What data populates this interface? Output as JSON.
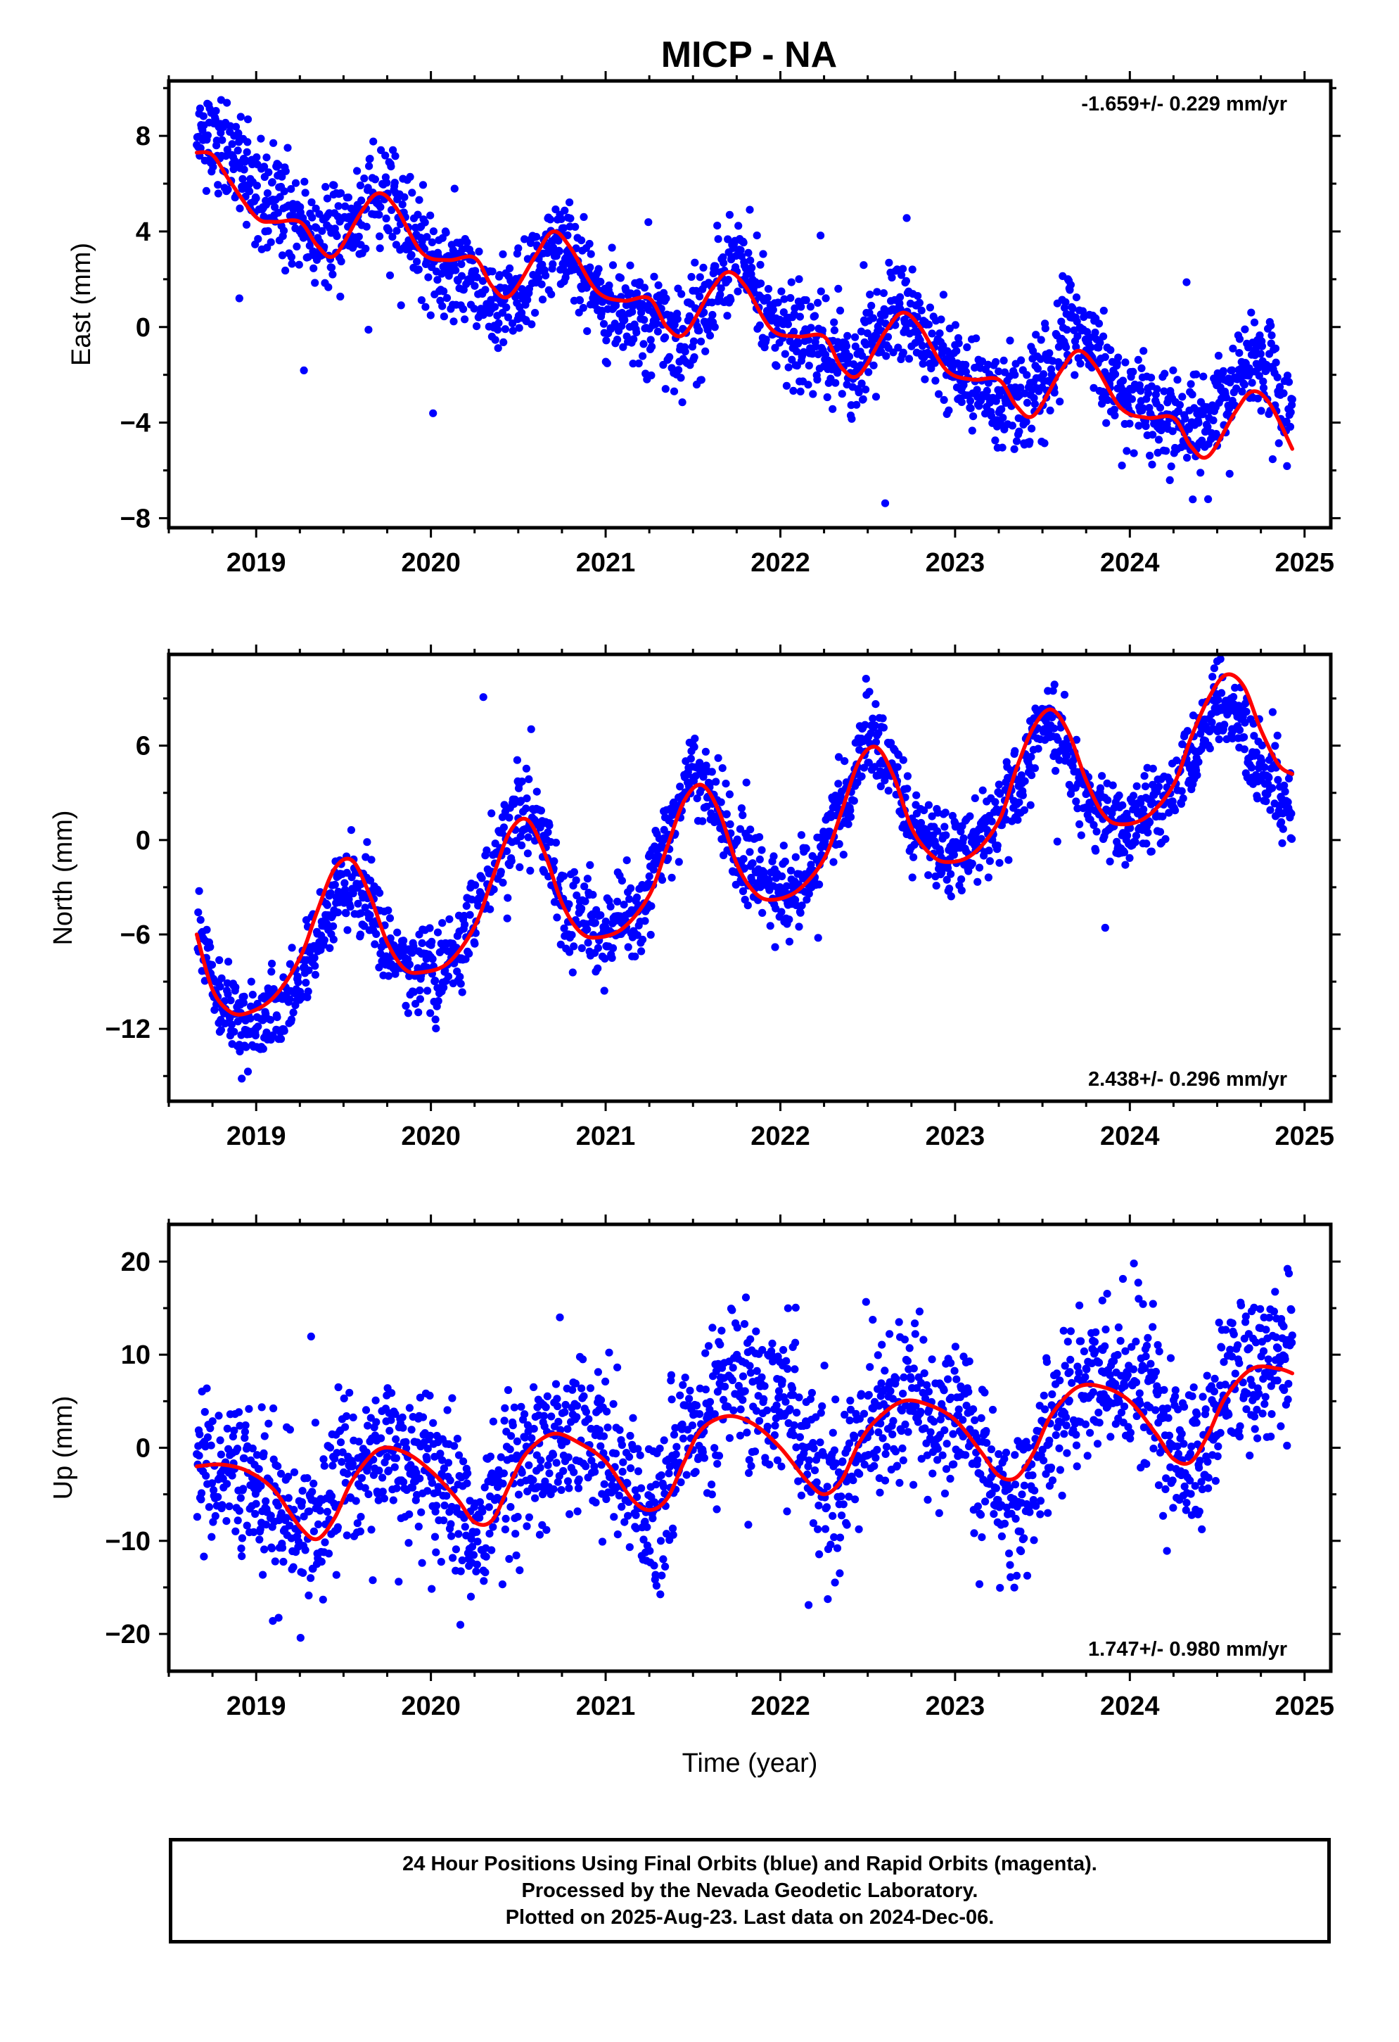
{
  "title": "MICP - NA",
  "footer": {
    "line1": "24 Hour Positions Using Final Orbits (blue) and Rapid Orbits (magenta).",
    "line2": "Processed by the Nevada Geodetic Laboratory.",
    "line3": "Plotted on 2025-Aug-23. Last data on 2024-Dec-06."
  },
  "colors": {
    "points": "#0000ff",
    "fit": "#ff0000",
    "frame": "#000000"
  },
  "chart_data": [
    {
      "type": "scatter",
      "ylabel": "East (mm)",
      "xlabel": "",
      "xlim": [
        2018.5,
        2025.15
      ],
      "ylim": [
        -8.4,
        10.3
      ],
      "xticks": [
        2019,
        2020,
        2021,
        2022,
        2023,
        2024,
        2025
      ],
      "yticks": [
        -8,
        -4,
        0,
        4,
        8
      ],
      "rate_label": "-1.659+/- 0.229 mm/yr",
      "rate_position": "top-right",
      "grid": false,
      "series": [
        {
          "kind": "points",
          "seed": 11,
          "noise_sd": 1.0,
          "outlier_every": 45,
          "outlier_scale": 2.6,
          "x_range": [
            2018.66,
            2024.93
          ],
          "trend": {
            "x": [
              2018.66,
              2018.75,
              2018.9,
              2019.0,
              2019.1,
              2019.25,
              2019.35,
              2019.5,
              2019.65,
              2019.75,
              2019.9,
              2020.0,
              2020.15,
              2020.3,
              2020.4,
              2020.55,
              2020.65,
              2020.75,
              2020.9,
              2021.0,
              2021.15,
              2021.3,
              2021.4,
              2021.55,
              2021.65,
              2021.75,
              2021.9,
              2022.0,
              2022.15,
              2022.3,
              2022.4,
              2022.55,
              2022.65,
              2022.75,
              2022.9,
              2023.0,
              2023.15,
              2023.3,
              2023.4,
              2023.55,
              2023.65,
              2023.75,
              2023.9,
              2024.0,
              2024.15,
              2024.3,
              2024.4,
              2024.55,
              2024.65,
              2024.75,
              2024.93
            ],
            "y": [
              8.5,
              7.8,
              6.5,
              5.6,
              5.2,
              4.8,
              3.6,
              3.9,
              5.4,
              5.3,
              3.6,
              2.5,
              2.5,
              1.6,
              0.8,
              1.8,
              3.3,
              3.5,
              2.0,
              0.8,
              0.5,
              0.3,
              -0.6,
              0.2,
              2.0,
              3.0,
              1.2,
              0.0,
              -0.8,
              -1.0,
              -1.7,
              -0.5,
              0.8,
              0.3,
              -1.2,
              -2.2,
              -2.5,
              -3.0,
              -3.1,
              -1.9,
              0.6,
              -0.6,
              -2.2,
              -3.0,
              -3.6,
              -4.1,
              -4.3,
              -3.0,
              -1.5,
              -1.6,
              -3.2
            ]
          }
        },
        {
          "kind": "fit",
          "x": [
            2018.66,
            2018.75,
            2018.85,
            2019.0,
            2019.1,
            2019.25,
            2019.35,
            2019.45,
            2019.6,
            2019.7,
            2019.8,
            2019.95,
            2020.1,
            2020.25,
            2020.35,
            2020.45,
            2020.6,
            2020.7,
            2020.8,
            2020.95,
            2021.1,
            2021.25,
            2021.35,
            2021.45,
            2021.6,
            2021.7,
            2021.8,
            2021.95,
            2022.1,
            2022.25,
            2022.35,
            2022.45,
            2022.6,
            2022.7,
            2022.8,
            2022.95,
            2023.1,
            2023.25,
            2023.35,
            2023.45,
            2023.6,
            2023.7,
            2023.8,
            2023.95,
            2024.1,
            2024.25,
            2024.35,
            2024.45,
            2024.6,
            2024.7,
            2024.8,
            2024.93
          ],
          "y": [
            7.3,
            7.2,
            6.1,
            4.6,
            4.4,
            4.4,
            3.4,
            3.0,
            4.8,
            5.6,
            5.0,
            3.1,
            2.8,
            2.9,
            1.7,
            1.3,
            3.0,
            4.0,
            3.3,
            1.5,
            1.1,
            1.2,
            0.0,
            -0.3,
            1.5,
            2.3,
            1.7,
            -0.1,
            -0.4,
            -0.4,
            -1.7,
            -2.0,
            -0.2,
            0.6,
            0.0,
            -1.8,
            -2.2,
            -2.2,
            -3.3,
            -3.7,
            -1.9,
            -1.0,
            -1.6,
            -3.4,
            -3.8,
            -3.8,
            -5.0,
            -5.4,
            -3.6,
            -2.7,
            -3.2,
            -5.1
          ]
        }
      ]
    },
    {
      "type": "scatter",
      "ylabel": "North (mm)",
      "xlabel": "",
      "xlim": [
        2018.5,
        2025.15
      ],
      "ylim": [
        -16.6,
        11.8
      ],
      "xticks": [
        2019,
        2020,
        2021,
        2022,
        2023,
        2024,
        2025
      ],
      "yticks": [
        -12,
        -6,
        0,
        6
      ],
      "rate_label": "2.438+/- 0.296 mm/yr",
      "rate_position": "bottom-right",
      "grid": false,
      "series": [
        {
          "kind": "points",
          "seed": 23,
          "noise_sd": 1.3,
          "outlier_every": 50,
          "outlier_scale": 2.4,
          "x_range": [
            2018.66,
            2024.93
          ],
          "trend": {
            "x": [
              2018.66,
              2018.8,
              2018.95,
              2019.15,
              2019.35,
              2019.5,
              2019.6,
              2019.8,
              2020.0,
              2020.15,
              2020.35,
              2020.5,
              2020.6,
              2020.8,
              2021.0,
              2021.15,
              2021.35,
              2021.5,
              2021.6,
              2021.8,
              2022.0,
              2022.15,
              2022.35,
              2022.5,
              2022.6,
              2022.8,
              2023.0,
              2023.15,
              2023.35,
              2023.5,
              2023.6,
              2023.8,
              2024.0,
              2024.15,
              2024.35,
              2024.5,
              2024.6,
              2024.8,
              2024.93
            ],
            "y": [
              -6.0,
              -10.5,
              -11.8,
              -11.0,
              -7.0,
              -2.5,
              -3.5,
              -7.5,
              -8.5,
              -7.0,
              -2.0,
              1.8,
              0.8,
              -4.5,
              -5.8,
              -5.0,
              0.0,
              4.2,
              3.0,
              -2.0,
              -3.5,
              -2.5,
              2.0,
              6.2,
              5.0,
              0.5,
              -0.8,
              0.2,
              3.0,
              8.0,
              6.5,
              2.0,
              0.5,
              1.5,
              5.0,
              8.5,
              7.5,
              4.0,
              2.0
            ]
          }
        },
        {
          "kind": "fit",
          "x": [
            2018.66,
            2018.75,
            2018.85,
            2018.95,
            2019.1,
            2019.25,
            2019.35,
            2019.45,
            2019.55,
            2019.65,
            2019.75,
            2019.85,
            2019.95,
            2020.1,
            2020.25,
            2020.35,
            2020.45,
            2020.55,
            2020.65,
            2020.75,
            2020.85,
            2020.95,
            2021.1,
            2021.25,
            2021.35,
            2021.45,
            2021.55,
            2021.65,
            2021.75,
            2021.85,
            2021.95,
            2022.1,
            2022.25,
            2022.35,
            2022.45,
            2022.55,
            2022.65,
            2022.75,
            2022.85,
            2022.95,
            2023.1,
            2023.25,
            2023.35,
            2023.45,
            2023.55,
            2023.65,
            2023.75,
            2023.85,
            2023.95,
            2024.1,
            2024.25,
            2024.35,
            2024.45,
            2024.55,
            2024.65,
            2024.75,
            2024.85,
            2024.93
          ],
          "y": [
            -6.0,
            -9.5,
            -10.9,
            -11.0,
            -10.0,
            -7.5,
            -4.5,
            -1.8,
            -1.3,
            -3.5,
            -6.5,
            -8.2,
            -8.4,
            -7.8,
            -5.5,
            -2.5,
            0.5,
            1.3,
            -0.8,
            -4.0,
            -5.8,
            -6.2,
            -5.6,
            -3.5,
            -0.5,
            2.5,
            3.5,
            1.8,
            -1.5,
            -3.3,
            -3.8,
            -3.2,
            -1.2,
            1.8,
            5.0,
            5.9,
            4.0,
            0.8,
            -0.8,
            -1.4,
            -0.9,
            1.2,
            4.5,
            7.2,
            8.3,
            6.8,
            3.8,
            1.6,
            1.0,
            1.5,
            3.5,
            6.5,
            9.0,
            10.5,
            9.8,
            7.0,
            4.8,
            4.2
          ]
        }
      ]
    },
    {
      "type": "scatter",
      "ylabel": "Up (mm)",
      "xlabel": "Time (year)",
      "xlim": [
        2018.5,
        2025.15
      ],
      "ylim": [
        -24,
        24
      ],
      "xticks": [
        2019,
        2020,
        2021,
        2022,
        2023,
        2024,
        2025
      ],
      "yticks": [
        -20,
        -10,
        0,
        10,
        20
      ],
      "rate_label": "1.747+/- 0.980 mm/yr",
      "rate_position": "bottom-right",
      "grid": false,
      "series": [
        {
          "kind": "points",
          "seed": 37,
          "noise_sd": 4.2,
          "outlier_every": 40,
          "outlier_scale": 2.2,
          "x_range": [
            2018.66,
            2024.93
          ],
          "trend": {
            "x": [
              2018.66,
              2018.85,
              2019.1,
              2019.3,
              2019.5,
              2019.75,
              2020.0,
              2020.25,
              2020.5,
              2020.75,
              2021.0,
              2021.25,
              2021.5,
              2021.75,
              2022.0,
              2022.3,
              2022.55,
              2022.75,
              2023.0,
              2023.35,
              2023.6,
              2023.85,
              2024.1,
              2024.35,
              2024.6,
              2024.93
            ],
            "y": [
              -1.0,
              -2.0,
              -6.5,
              -9.5,
              -3.0,
              0.0,
              -3.0,
              -8.5,
              -2.5,
              2.0,
              0.0,
              -6.0,
              2.0,
              6.0,
              5.0,
              -4.5,
              3.0,
              5.0,
              4.0,
              -6.0,
              4.0,
              7.5,
              6.0,
              -1.0,
              7.0,
              9.0
            ]
          }
        },
        {
          "kind": "fit",
          "x": [
            2018.66,
            2018.8,
            2018.95,
            2019.1,
            2019.25,
            2019.35,
            2019.45,
            2019.55,
            2019.7,
            2019.85,
            2020.0,
            2020.15,
            2020.25,
            2020.35,
            2020.45,
            2020.55,
            2020.7,
            2020.85,
            2021.0,
            2021.15,
            2021.25,
            2021.35,
            2021.45,
            2021.55,
            2021.7,
            2021.85,
            2022.0,
            2022.15,
            2022.25,
            2022.35,
            2022.45,
            2022.55,
            2022.7,
            2022.85,
            2023.0,
            2023.15,
            2023.25,
            2023.35,
            2023.45,
            2023.55,
            2023.7,
            2023.85,
            2024.0,
            2024.15,
            2024.25,
            2024.35,
            2024.45,
            2024.55,
            2024.7,
            2024.85,
            2024.93
          ],
          "y": [
            -2.0,
            -1.8,
            -2.5,
            -4.5,
            -8.5,
            -9.8,
            -7.5,
            -3.5,
            -0.2,
            -0.5,
            -2.5,
            -5.5,
            -8.0,
            -7.8,
            -4.0,
            -0.5,
            1.5,
            0.5,
            -1.5,
            -5.5,
            -6.7,
            -5.5,
            -1.5,
            2.0,
            3.4,
            2.5,
            0.0,
            -3.5,
            -5.0,
            -3.5,
            0.5,
            3.0,
            5.0,
            4.6,
            3.0,
            -0.5,
            -3.0,
            -3.2,
            -0.5,
            3.5,
            6.5,
            6.5,
            5.0,
            1.5,
            -1.2,
            -1.5,
            1.5,
            5.5,
            8.5,
            8.5,
            8.0
          ]
        }
      ]
    }
  ]
}
